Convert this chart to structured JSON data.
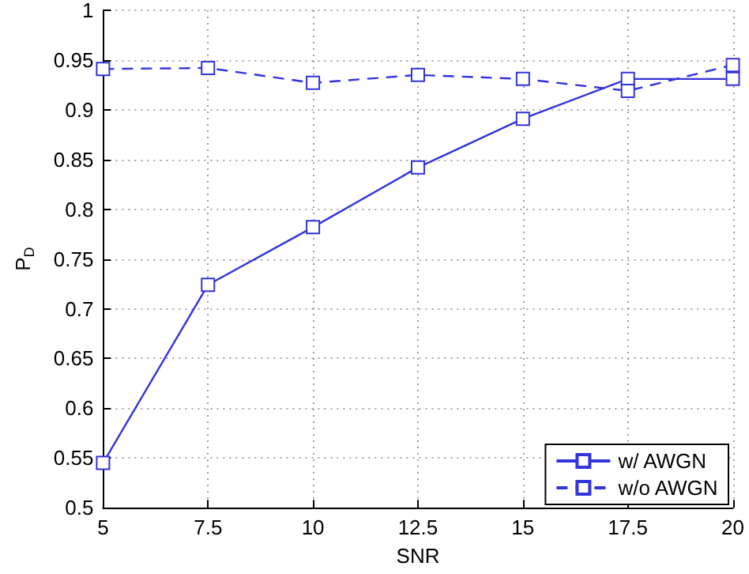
{
  "chart_data": {
    "type": "line",
    "xlabel": "SNR",
    "ylabel": "P$_{D}$",
    "x": [
      5,
      7.5,
      10,
      12.5,
      15,
      17.5,
      20
    ],
    "series": [
      {
        "name": "w/ AWGN",
        "color": "#3333dd",
        "line_style": "solid",
        "values": [
          0.545,
          0.724,
          0.782,
          0.842,
          0.891,
          0.931,
          0.931
        ]
      },
      {
        "name": "w/o AWGN",
        "color": "#3333dd",
        "line_style": "dashed",
        "values": [
          0.941,
          0.942,
          0.927,
          0.935,
          0.931,
          0.919,
          0.945
        ]
      }
    ],
    "xlim": [
      5,
      20
    ],
    "xticks": [
      5,
      7.5,
      10,
      12.5,
      15,
      17.5,
      20
    ],
    "ylim": [
      0.5,
      1
    ],
    "yticks": [
      0.5,
      0.55,
      0.6,
      0.65,
      0.7,
      0.75,
      0.8,
      0.85,
      0.9,
      0.95,
      1
    ],
    "grid": true,
    "legend": "bottom right",
    "marker": "square"
  }
}
